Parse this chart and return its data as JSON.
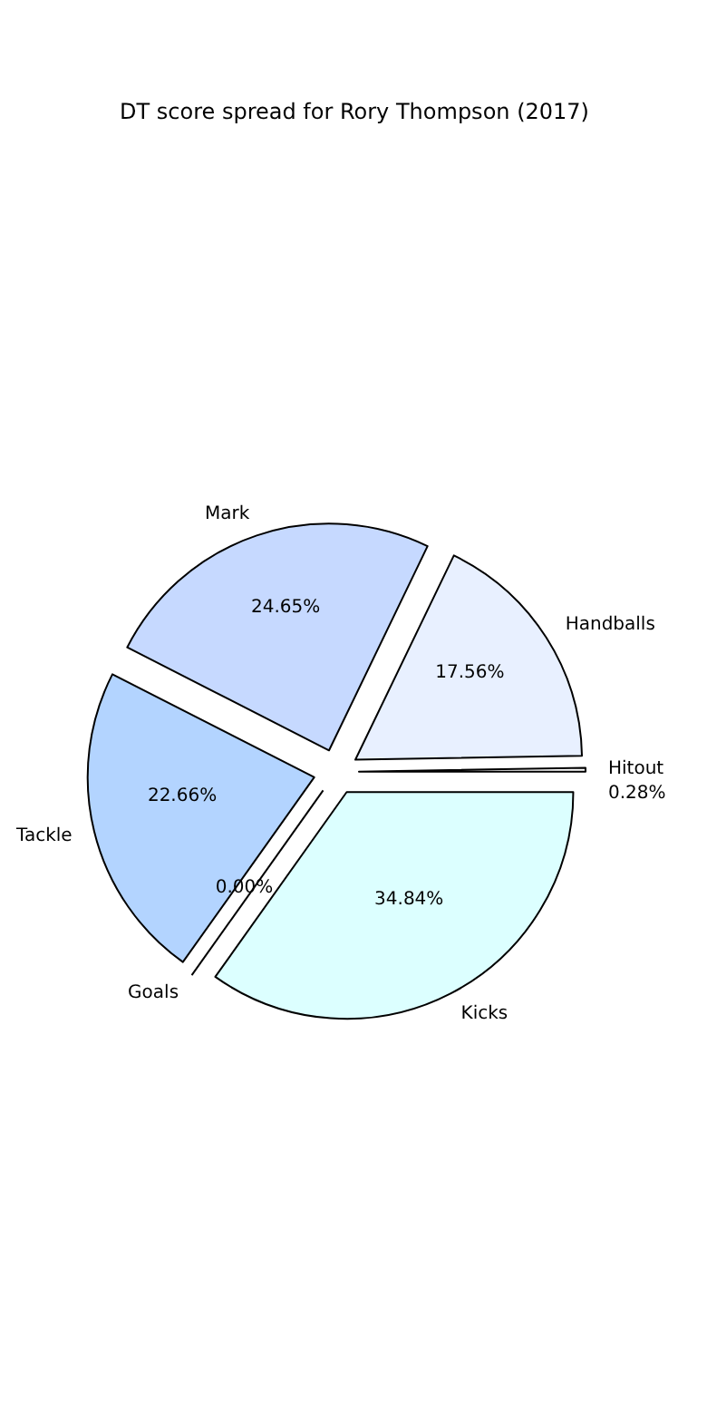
{
  "chart_data": {
    "type": "pie",
    "title": "DT score spread for Rory Thompson (2017)",
    "categories": [
      "Hitout",
      "Handballs",
      "Mark",
      "Tackle",
      "Goals",
      "Kicks"
    ],
    "values": [
      0.28,
      17.56,
      24.65,
      22.66,
      0.0,
      34.84
    ],
    "colors": [
      "#ffffff",
      "#e8f0ff",
      "#c6d9ff",
      "#b3d4ff",
      "#b0e0e6",
      "#dcffff"
    ],
    "value_labels": [
      "0.28%",
      "17.56%",
      "24.65%",
      "22.66%",
      "0.00%",
      "34.84%"
    ]
  }
}
